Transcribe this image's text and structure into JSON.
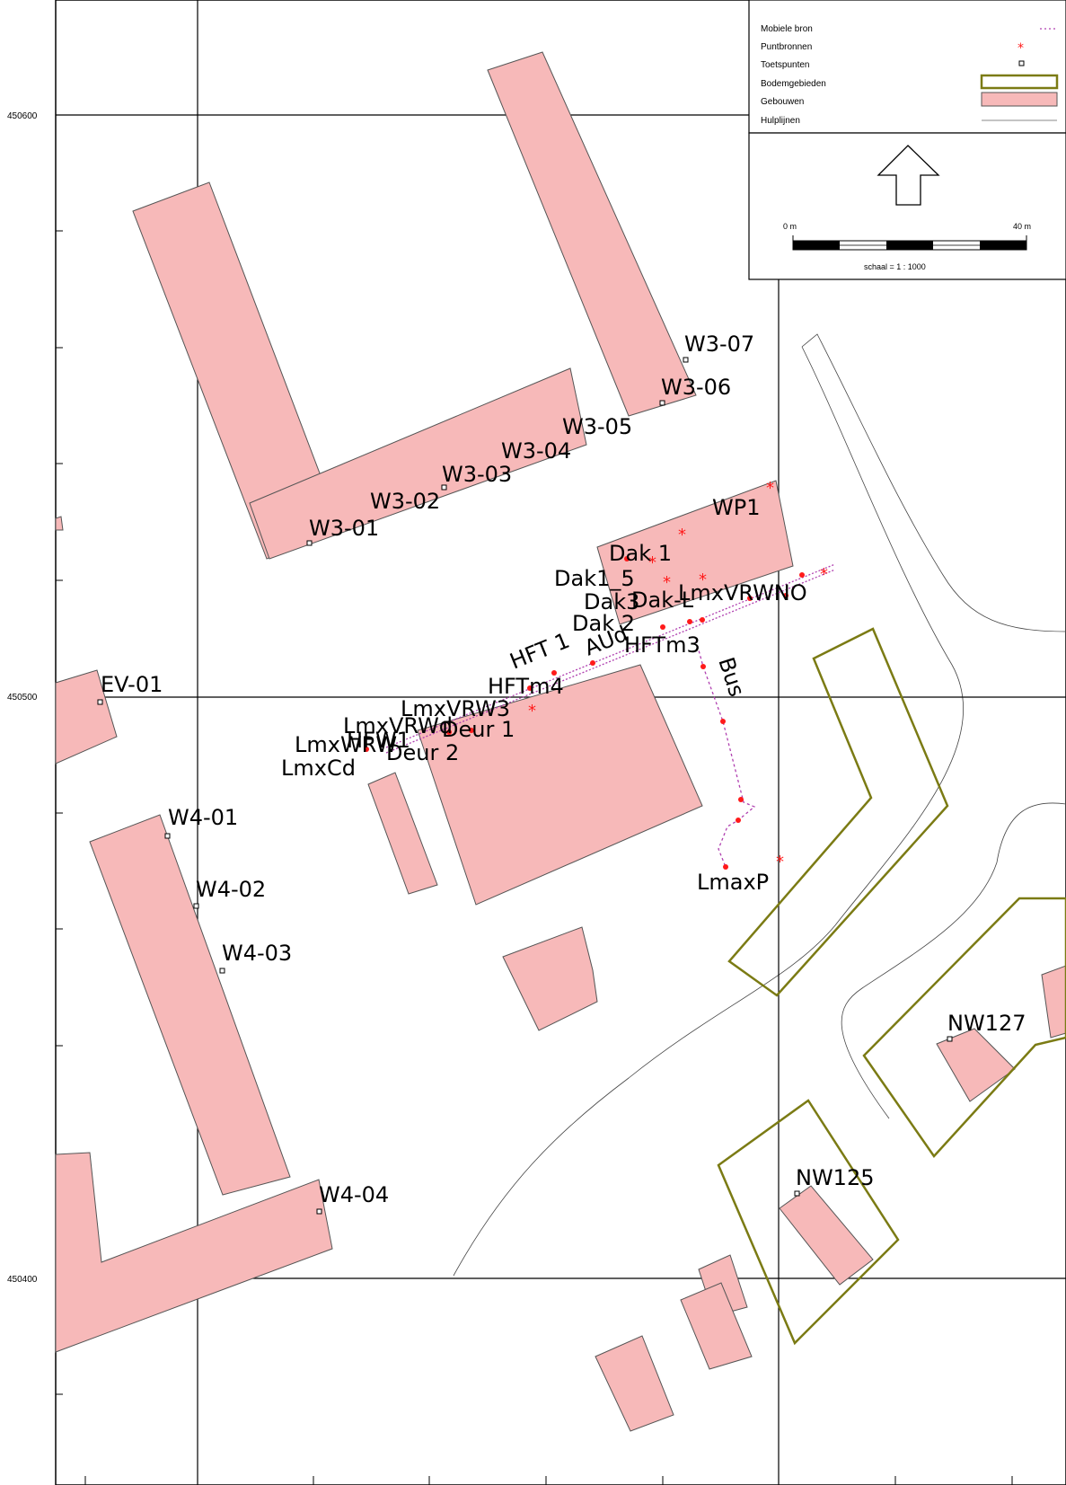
{
  "map": {
    "y_axis_labels": [
      "450600",
      "450500",
      "450400"
    ]
  },
  "legend": {
    "items": [
      {
        "label": "Mobiele bron",
        "icon": "dotted-line-icon",
        "color": "#b040b0"
      },
      {
        "label": "Puntbronnen",
        "icon": "red-star-icon",
        "color": "#ff1a1a"
      },
      {
        "label": "Toetspunten",
        "icon": "small-square-icon",
        "color": "#000000"
      },
      {
        "label": "Bodemgebieden",
        "icon": "olive-rect-icon",
        "color": "#7b7b14"
      },
      {
        "label": "Gebouwen",
        "icon": "pink-rect-icon",
        "color": "#f7b9b9"
      },
      {
        "label": "Hulplijnen",
        "icon": "gray-line-icon",
        "color": "#888888"
      }
    ]
  },
  "scalebar": {
    "start_label": "0 m",
    "end_label": "40 m",
    "scale_text": "schaal = 1 : 1000"
  },
  "labels": {
    "W3-07": "W3-07",
    "W3-06": "W3-06",
    "W3-05": "W3-05",
    "W3-04": "W3-04",
    "W3-03": "W3-03",
    "W3-02": "W3-02",
    "W3-01": "W3-01",
    "WP1": "WP1",
    "Dak1": "Dak 1",
    "Dak15": "Dak1_5",
    "Dak3": "Dak3",
    "DakL": "Dak-L",
    "LmxVRWNO": "LmxVRWNO",
    "Dak2": "Dak 2",
    "HFT1": "HFT 1",
    "AUd": "AUd",
    "HFTm3": "HFTm3",
    "HFTm4": "HFTm4",
    "Bus": "Bus",
    "LmxVRW3": "LmxVRW3",
    "LmxVRWd": "LmxVRWd",
    "Deur1": "Deur 1",
    "HFW1": "HFW1",
    "LmxWRW": "LmxWRW",
    "Deur2": "Deur 2",
    "LmxCd": "LmxCd",
    "EV-01": "EV-01",
    "W4-01": "W4-01",
    "W4-02": "W4-02",
    "W4-03": "W4-03",
    "W4-04": "W4-04",
    "LmaxP": "LmaxP",
    "NW127": "NW127",
    "NW125": "NW125"
  }
}
